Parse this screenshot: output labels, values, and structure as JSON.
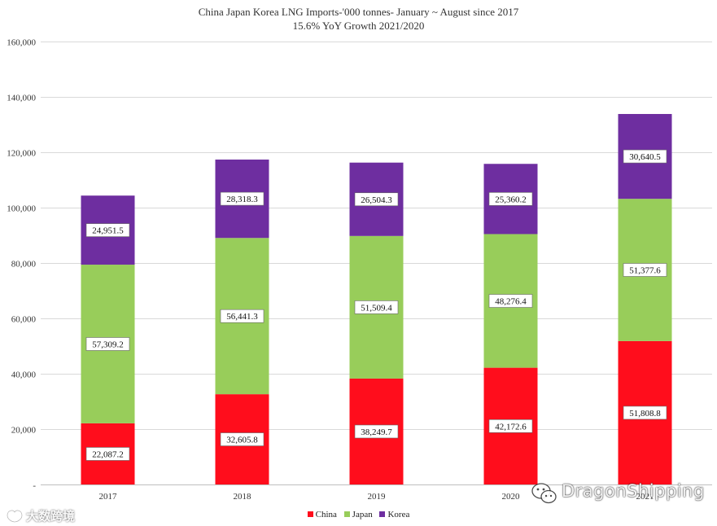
{
  "chart_data": {
    "type": "bar",
    "stacked": true,
    "title": "China Japan Korea LNG Imports-'000 tonnes- January ~ August since 2017",
    "subtitle": "15.6% YoY Growth 2021/2020",
    "categories": [
      "2017",
      "2018",
      "2019",
      "2020",
      "2021"
    ],
    "series": [
      {
        "name": "China",
        "color": "#ff0d1c",
        "values": [
          22087.2,
          32605.8,
          38249.7,
          42172.6,
          51808.8
        ],
        "labels": [
          "22,087.2",
          "32,605.8",
          "38,249.7",
          "42,172.6",
          "51,808.8"
        ]
      },
      {
        "name": "Japan",
        "color": "#98cd5a",
        "values": [
          57309.2,
          56441.3,
          51509.4,
          48276.4,
          51377.6
        ],
        "labels": [
          "57,309.2",
          "56,441.3",
          "51,509.4",
          "48,276.4",
          "51,377.6"
        ]
      },
      {
        "name": "Korea",
        "color": "#6e2ea0",
        "values": [
          24951.5,
          28318.3,
          26504.3,
          25360.2,
          30640.5
        ],
        "labels": [
          "24,951.5",
          "28,318.3",
          "26,504.3",
          "25,360.2",
          "30,640.5"
        ]
      }
    ],
    "ylim": [
      0,
      160000
    ],
    "yticks": [
      0,
      20000,
      40000,
      60000,
      80000,
      100000,
      120000,
      140000,
      160000
    ],
    "ytick_labels": [
      "-",
      "20,000",
      "40,000",
      "60,000",
      "80,000",
      "100,000",
      "120,000",
      "140,000",
      "160,000"
    ],
    "xlabel": "",
    "ylabel": "",
    "grid": true,
    "legend_position": "bottom"
  },
  "watermarks": {
    "right_text": "DragonShipping",
    "left_text": "大数跨境"
  }
}
